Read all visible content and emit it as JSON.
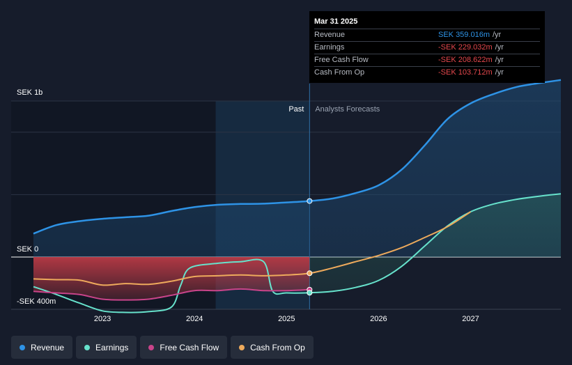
{
  "colors": {
    "background": "#161c2b",
    "revenue": "#2e93e6",
    "earnings": "#67e2cc",
    "free_cash_flow": "#c9448a",
    "cash_from_op": "#eeaa5c",
    "negative_fill": "#b93a45"
  },
  "tooltip": {
    "date": "Mar 31 2025",
    "rows": [
      {
        "label": "Revenue",
        "value": "SEK 359.016m",
        "unit": "/yr",
        "color": "#2e93e6"
      },
      {
        "label": "Earnings",
        "value": "-SEK 229.032m",
        "unit": "/yr",
        "color": "#e5484d"
      },
      {
        "label": "Free Cash Flow",
        "value": "-SEK 208.622m",
        "unit": "/yr",
        "color": "#e5484d"
      },
      {
        "label": "Cash From Op",
        "value": "-SEK 103.712m",
        "unit": "/yr",
        "color": "#e5484d"
      }
    ]
  },
  "legend": [
    {
      "label": "Revenue",
      "color": "#2e93e6"
    },
    {
      "label": "Earnings",
      "color": "#67e2cc"
    },
    {
      "label": "Free Cash Flow",
      "color": "#c9448a"
    },
    {
      "label": "Cash From Op",
      "color": "#eeaa5c"
    }
  ],
  "chart_data": {
    "type": "line",
    "y_unit_label_top": "SEK 1b",
    "y_unit_label_zero": "SEK 0",
    "y_unit_label_bottom": "-SEK 400m",
    "ylim": [
      -400,
      1200
    ],
    "xlim": [
      2022.25,
      2027.98
    ],
    "x_ticks": [
      2023,
      2024,
      2025,
      2026,
      2027
    ],
    "x_tick_labels": [
      "2023",
      "2024",
      "2025",
      "2026",
      "2027"
    ],
    "past_label": "Past",
    "forecast_label": "Analysts Forecasts",
    "past_end": 2025.25,
    "highlight_start": 2024.23,
    "legend_position": "bottom-left",
    "series": [
      {
        "name": "Revenue",
        "key": "revenue",
        "x": [
          2022.25,
          2022.5,
          2022.75,
          2023.0,
          2023.25,
          2023.5,
          2023.75,
          2024.0,
          2024.25,
          2024.5,
          2024.75,
          2025.0,
          2025.25,
          2025.5,
          2025.75,
          2026.0,
          2026.25,
          2026.5,
          2026.75,
          2027.0,
          2027.25,
          2027.5,
          2027.75,
          2027.98
        ],
        "values": [
          150,
          205,
          230,
          245,
          255,
          265,
          295,
          320,
          335,
          340,
          342,
          350,
          359,
          375,
          410,
          460,
          560,
          715,
          885,
          985,
          1045,
          1090,
          1115,
          1135
        ]
      },
      {
        "name": "Earnings",
        "key": "earnings",
        "x": [
          2022.25,
          2022.5,
          2022.75,
          2023.0,
          2023.25,
          2023.5,
          2023.75,
          2023.85,
          2023.95,
          2024.25,
          2024.5,
          2024.75,
          2024.85,
          2025.0,
          2025.25,
          2025.5,
          2025.75,
          2026.0,
          2026.25,
          2026.5,
          2026.75,
          2027.0,
          2027.25,
          2027.5,
          2027.75,
          2027.98
        ],
        "values": [
          -190,
          -240,
          -295,
          -345,
          -355,
          -350,
          -320,
          -180,
          -70,
          -40,
          -30,
          -30,
          -220,
          -230,
          -229,
          -220,
          -195,
          -150,
          -60,
          70,
          200,
          290,
          340,
          370,
          390,
          405
        ]
      },
      {
        "name": "Free Cash Flow",
        "key": "free_cash_flow",
        "x": [
          2022.25,
          2022.5,
          2022.75,
          2023.0,
          2023.25,
          2023.5,
          2023.75,
          2024.0,
          2024.25,
          2024.5,
          2024.75,
          2025.0,
          2025.25
        ],
        "values": [
          -220,
          -230,
          -240,
          -270,
          -275,
          -270,
          -245,
          -215,
          -215,
          -205,
          -215,
          -215,
          -209
        ]
      },
      {
        "name": "Cash From Op",
        "key": "cash_from_op",
        "x": [
          2022.25,
          2022.5,
          2022.75,
          2023.0,
          2023.25,
          2023.5,
          2023.75,
          2024.0,
          2024.25,
          2024.5,
          2024.75,
          2025.0,
          2025.25,
          2025.5,
          2025.75,
          2026.0,
          2026.25,
          2026.5,
          2026.75,
          2027.0
        ],
        "values": [
          -140,
          -145,
          -148,
          -180,
          -170,
          -175,
          -155,
          -125,
          -120,
          -115,
          -120,
          -115,
          -104,
          -70,
          -30,
          10,
          60,
          125,
          195,
          290
        ]
      }
    ]
  }
}
